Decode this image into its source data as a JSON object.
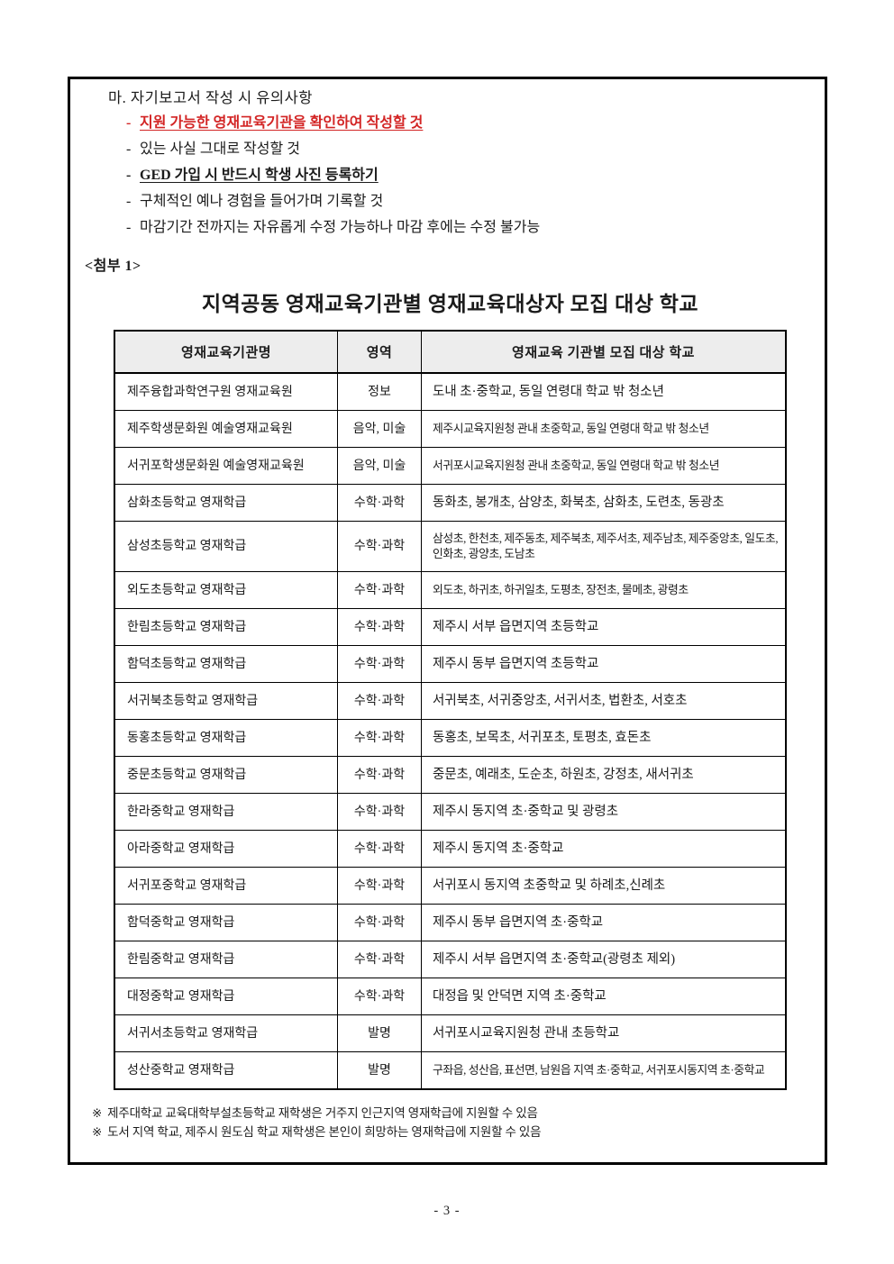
{
  "notice": {
    "heading": "마. 자기보고서 작성 시 유의사항",
    "items": [
      {
        "dash": "-",
        "text": "지원 가능한 영재교육기관을 확인하여 작성할 것",
        "emphasis": "red-bold-underline"
      },
      {
        "dash": "-",
        "text": "있는 사실 그대로 작성할 것",
        "emphasis": "plain"
      },
      {
        "dash": "-",
        "text": "GED 가입 시 반드시 학생 사진 등록하기",
        "emphasis": "bold-underline"
      },
      {
        "dash": "-",
        "text": "구체적인 예나 경험을 들어가며 기록할 것",
        "emphasis": "plain"
      },
      {
        "dash": "-",
        "text": "마감기간 전까지는 자유롭게 수정 가능하나 마감 후에는 수정 불가능",
        "emphasis": "plain"
      }
    ]
  },
  "attachment_label": "<첨부 1>",
  "table_title": "지역공동 영재교육기관별 영재교육대상자 모집 대상 학교",
  "table": {
    "headers": [
      "영재교육기관명",
      "영역",
      "영재교육 기관별 모집 대상 학교"
    ],
    "rows": [
      [
        "제주융합과학연구원 영재교육원",
        "정보",
        "도내 초·중학교, 동일 연령대 학교 밖 청소년"
      ],
      [
        "제주학생문화원 예술영재교육원",
        "음악, 미술",
        "제주시교육지원청 관내 초중학교, 동일 연령대 학교 밖 청소년"
      ],
      [
        "서귀포학생문화원 예술영재교육원",
        "음악, 미술",
        "서귀포시교육지원청 관내 초중학교, 동일 연령대 학교 밖 청소년"
      ],
      [
        "삼화초등학교 영재학급",
        "수학·과학",
        "동화초, 봉개초, 삼양초, 화북초, 삼화초, 도련초, 동광초"
      ],
      [
        "삼성초등학교 영재학급",
        "수학·과학",
        "삼성초, 한천초, 제주동초, 제주북초, 제주서초, 제주남초, 제주중앙초, 일도초, 인화초, 광양초, 도남초"
      ],
      [
        "외도초등학교 영재학급",
        "수학·과학",
        "외도초, 하귀초, 하귀일초, 도평초, 장전초, 물메초, 광령초"
      ],
      [
        "한림초등학교 영재학급",
        "수학·과학",
        "제주시 서부 읍면지역 초등학교"
      ],
      [
        "함덕초등학교 영재학급",
        "수학·과학",
        "제주시 동부 읍면지역 초등학교"
      ],
      [
        "서귀북초등학교 영재학급",
        "수학·과학",
        "서귀북초, 서귀중앙초, 서귀서초, 법환초, 서호초"
      ],
      [
        "동홍초등학교 영재학급",
        "수학·과학",
        "동홍초, 보목초, 서귀포초, 토평초, 효돈초"
      ],
      [
        "중문초등학교 영재학급",
        "수학·과학",
        "중문초, 예래초, 도순초, 하원초, 강정초, 새서귀초"
      ],
      [
        "한라중학교 영재학급",
        "수학·과학",
        "제주시 동지역 초·중학교 및 광령초"
      ],
      [
        "아라중학교 영재학급",
        "수학·과학",
        "제주시 동지역 초·중학교"
      ],
      [
        "서귀포중학교 영재학급",
        "수학·과학",
        "서귀포시 동지역 초중학교 및 하례초,신례초"
      ],
      [
        "함덕중학교 영재학급",
        "수학·과학",
        "제주시 동부 읍면지역 초·중학교"
      ],
      [
        "한림중학교 영재학급",
        "수학·과학",
        "제주시 서부 읍면지역 초·중학교(광령초 제외)"
      ],
      [
        "대정중학교 영재학급",
        "수학·과학",
        "대정읍 및 안덕면 지역 초·중학교"
      ],
      [
        "서귀서초등학교 영재학급",
        "발명",
        "서귀포시교육지원청 관내 초등학교"
      ],
      [
        "성산중학교 영재학급",
        "발명",
        "구좌읍, 성산읍, 표선면, 남원읍 지역 초·중학교, 서귀포시동지역 초·중학교"
      ]
    ]
  },
  "footnotes": [
    {
      "marker": "※",
      "text": "제주대학교 교육대학부설초등학교 재학생은 거주지 인근지역 영재학급에 지원할 수 있음"
    },
    {
      "marker": "※",
      "text": "도서 지역 학교, 제주시 원도심 학교 재학생은 본인이 희망하는 영재학급에 지원할 수 있음"
    }
  ],
  "page_number": "- 3 -",
  "colors": {
    "accent_red": "#d32525",
    "table_header_bg": "#ededed",
    "border": "#000000"
  }
}
